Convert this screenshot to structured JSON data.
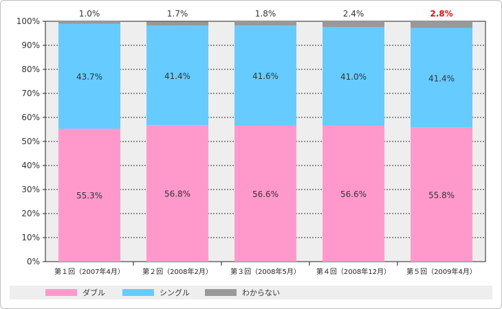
{
  "chart_data": {
    "type": "bar",
    "stacked": true,
    "categories": [
      "第１回（2007年4月）",
      "第２回（2008年2月）",
      "第３回（2008年5月）",
      "第４回（2008年12月）",
      "第５回（2009年4月）"
    ],
    "series": [
      {
        "name": "ダブル",
        "values": [
          55.3,
          56.8,
          56.6,
          56.6,
          55.8
        ],
        "labels": [
          "55.3%",
          "56.8%",
          "56.6%",
          "56.6%",
          "55.8%"
        ],
        "color": "#ff99cc"
      },
      {
        "name": "シングル",
        "values": [
          43.7,
          41.4,
          41.6,
          41.0,
          41.4
        ],
        "labels": [
          "43.7%",
          "41.4%",
          "41.6%",
          "41.0%",
          "41.4%"
        ],
        "color": "#66ccff"
      },
      {
        "name": "わからない",
        "values": [
          1.0,
          1.7,
          1.8,
          2.4,
          2.8
        ],
        "labels": [
          "1.0%",
          "1.7%",
          "1.8%",
          "2.4%",
          "2.8%"
        ],
        "color": "#999999"
      }
    ],
    "highlight_index": 4,
    "highlight_color": "#dd1111",
    "ylim": [
      0,
      100
    ],
    "yticks": [
      "0%",
      "10%",
      "20%",
      "30%",
      "40%",
      "50%",
      "60%",
      "70%",
      "80%",
      "90%",
      "100%"
    ],
    "grid": true,
    "legend": "bottom",
    "plot_background": "#eeeeee"
  }
}
